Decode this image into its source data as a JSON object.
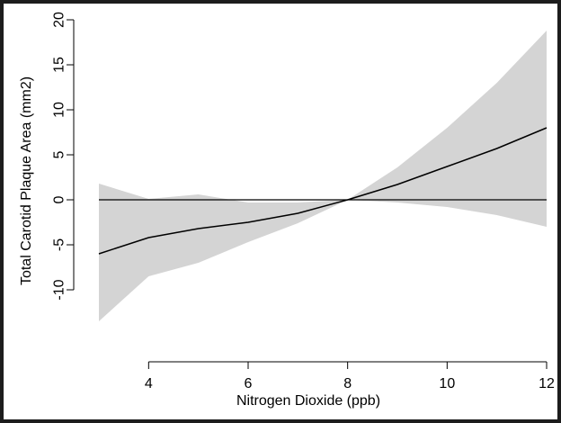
{
  "chart_data": {
    "type": "line",
    "xlabel": "Nitrogen Dioxide (ppb)",
    "ylabel": "Total Carotid Plaque Area (mm2)",
    "xlim": [
      3,
      12
    ],
    "ylim": [
      -15,
      20
    ],
    "x_ticks": [
      4,
      6,
      8,
      10,
      12
    ],
    "y_ticks": [
      -10,
      -5,
      0,
      5,
      10,
      15,
      20
    ],
    "grid": false,
    "reference_line_y": 0,
    "series": [
      {
        "x": [
          3,
          4,
          5,
          6,
          7,
          8,
          9,
          10,
          11,
          12
        ],
        "values": [
          -6.0,
          -4.2,
          -3.2,
          -2.5,
          -1.5,
          0.0,
          1.7,
          3.7,
          5.7,
          8.0
        ],
        "lower": [
          -13.5,
          -8.5,
          -7.0,
          -4.7,
          -2.6,
          0.0,
          -0.3,
          -0.8,
          -1.7,
          -3.0
        ],
        "upper": [
          1.8,
          0.1,
          0.6,
          -0.3,
          -0.3,
          0.0,
          3.6,
          8.0,
          13.0,
          18.8
        ]
      }
    ],
    "colors": {
      "band": "#d4d4d4",
      "line": "#000000",
      "frame": "#1c1c1c"
    }
  }
}
